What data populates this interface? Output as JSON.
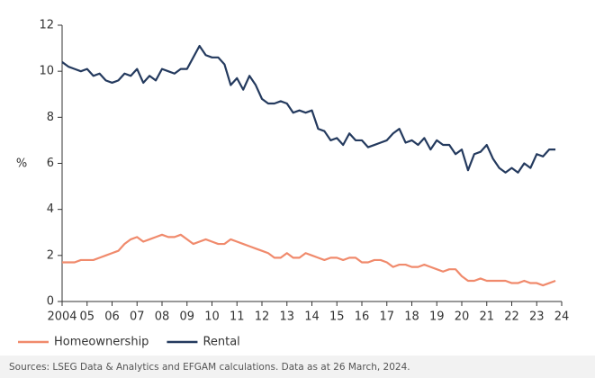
{
  "chart_data": {
    "type": "line",
    "ylabel": "%",
    "note": "Sources: LSEG Data & Analytics and EFGAM calculations. Data as at 26 March, 2024.",
    "x": [
      2004,
      2004.25,
      2004.5,
      2004.75,
      2005,
      2005.25,
      2005.5,
      2005.75,
      2006,
      2006.25,
      2006.5,
      2006.75,
      2007,
      2007.25,
      2007.5,
      2007.75,
      2008,
      2008.25,
      2008.5,
      2008.75,
      2009,
      2009.25,
      2009.5,
      2009.75,
      2010,
      2010.25,
      2010.5,
      2010.75,
      2011,
      2011.25,
      2011.5,
      2011.75,
      2012,
      2012.25,
      2012.5,
      2012.75,
      2013,
      2013.25,
      2013.5,
      2013.75,
      2014,
      2014.25,
      2014.5,
      2014.75,
      2015,
      2015.25,
      2015.5,
      2015.75,
      2016,
      2016.25,
      2016.5,
      2016.75,
      2017,
      2017.25,
      2017.5,
      2017.75,
      2018,
      2018.25,
      2018.5,
      2018.75,
      2019,
      2019.25,
      2019.5,
      2019.75,
      2020,
      2020.25,
      2020.5,
      2020.75,
      2021,
      2021.25,
      2021.5,
      2021.75,
      2022,
      2022.25,
      2022.5,
      2022.75,
      2023,
      2023.25,
      2023.5,
      2023.75
    ],
    "series": [
      {
        "name": "Homeownership",
        "color": "#f08a6c",
        "values": [
          1.7,
          1.7,
          1.7,
          1.8,
          1.8,
          1.8,
          1.9,
          2.0,
          2.1,
          2.2,
          2.5,
          2.7,
          2.8,
          2.6,
          2.7,
          2.8,
          2.9,
          2.8,
          2.8,
          2.9,
          2.7,
          2.5,
          2.6,
          2.7,
          2.6,
          2.5,
          2.5,
          2.7,
          2.6,
          2.5,
          2.4,
          2.3,
          2.2,
          2.1,
          1.9,
          1.9,
          2.1,
          1.9,
          1.9,
          2.1,
          2.0,
          1.9,
          1.8,
          1.9,
          1.9,
          1.8,
          1.9,
          1.9,
          1.7,
          1.7,
          1.8,
          1.8,
          1.7,
          1.5,
          1.6,
          1.6,
          1.5,
          1.5,
          1.6,
          1.5,
          1.4,
          1.3,
          1.4,
          1.4,
          1.1,
          0.9,
          0.9,
          1.0,
          0.9,
          0.9,
          0.9,
          0.9,
          0.8,
          0.8,
          0.9,
          0.8,
          0.8,
          0.7,
          0.8,
          0.9
        ]
      },
      {
        "name": "Rental",
        "color": "#243a5e",
        "values": [
          10.4,
          10.2,
          10.1,
          10.0,
          10.1,
          9.8,
          9.9,
          9.6,
          9.5,
          9.6,
          9.9,
          9.8,
          10.1,
          9.5,
          9.8,
          9.6,
          10.1,
          10.0,
          9.9,
          10.1,
          10.1,
          10.6,
          11.1,
          10.7,
          10.6,
          10.6,
          10.3,
          9.4,
          9.7,
          9.2,
          9.8,
          9.4,
          8.8,
          8.6,
          8.6,
          8.7,
          8.6,
          8.2,
          8.3,
          8.2,
          8.3,
          7.5,
          7.4,
          7.0,
          7.1,
          6.8,
          7.3,
          7.0,
          7.0,
          6.7,
          6.8,
          6.9,
          7.0,
          7.3,
          7.5,
          6.9,
          7.0,
          6.8,
          7.1,
          6.6,
          7.0,
          6.8,
          6.8,
          6.4,
          6.6,
          5.7,
          6.4,
          6.5,
          6.8,
          6.2,
          5.8,
          5.6,
          5.8,
          5.6,
          6.0,
          5.8,
          6.4,
          6.3,
          6.6,
          6.6
        ]
      }
    ],
    "xlim": [
      2004,
      2024
    ],
    "xticks": [
      2004,
      {
        "value": 2005,
        "label": "05"
      },
      {
        "value": 2006,
        "label": "06"
      },
      {
        "value": 2007,
        "label": "07"
      },
      {
        "value": 2008,
        "label": "08"
      },
      {
        "value": 2009,
        "label": "09"
      },
      {
        "value": 2010,
        "label": "10"
      },
      {
        "value": 2011,
        "label": "11"
      },
      {
        "value": 2012,
        "label": "12"
      },
      {
        "value": 2013,
        "label": "13"
      },
      {
        "value": 2014,
        "label": "14"
      },
      {
        "value": 2015,
        "label": "15"
      },
      {
        "value": 2016,
        "label": "16"
      },
      {
        "value": 2017,
        "label": "17"
      },
      {
        "value": 2018,
        "label": "18"
      },
      {
        "value": 2019,
        "label": "19"
      },
      {
        "value": 2020,
        "label": "20"
      },
      {
        "value": 2021,
        "label": "21"
      },
      {
        "value": 2022,
        "label": "22"
      },
      {
        "value": 2023,
        "label": "23"
      },
      {
        "value": 2024,
        "label": "24"
      }
    ],
    "ylim": [
      0,
      12
    ],
    "yticks": [
      0,
      2,
      4,
      6,
      8,
      10,
      12
    ],
    "grid": false,
    "legend": "bottom-left"
  }
}
